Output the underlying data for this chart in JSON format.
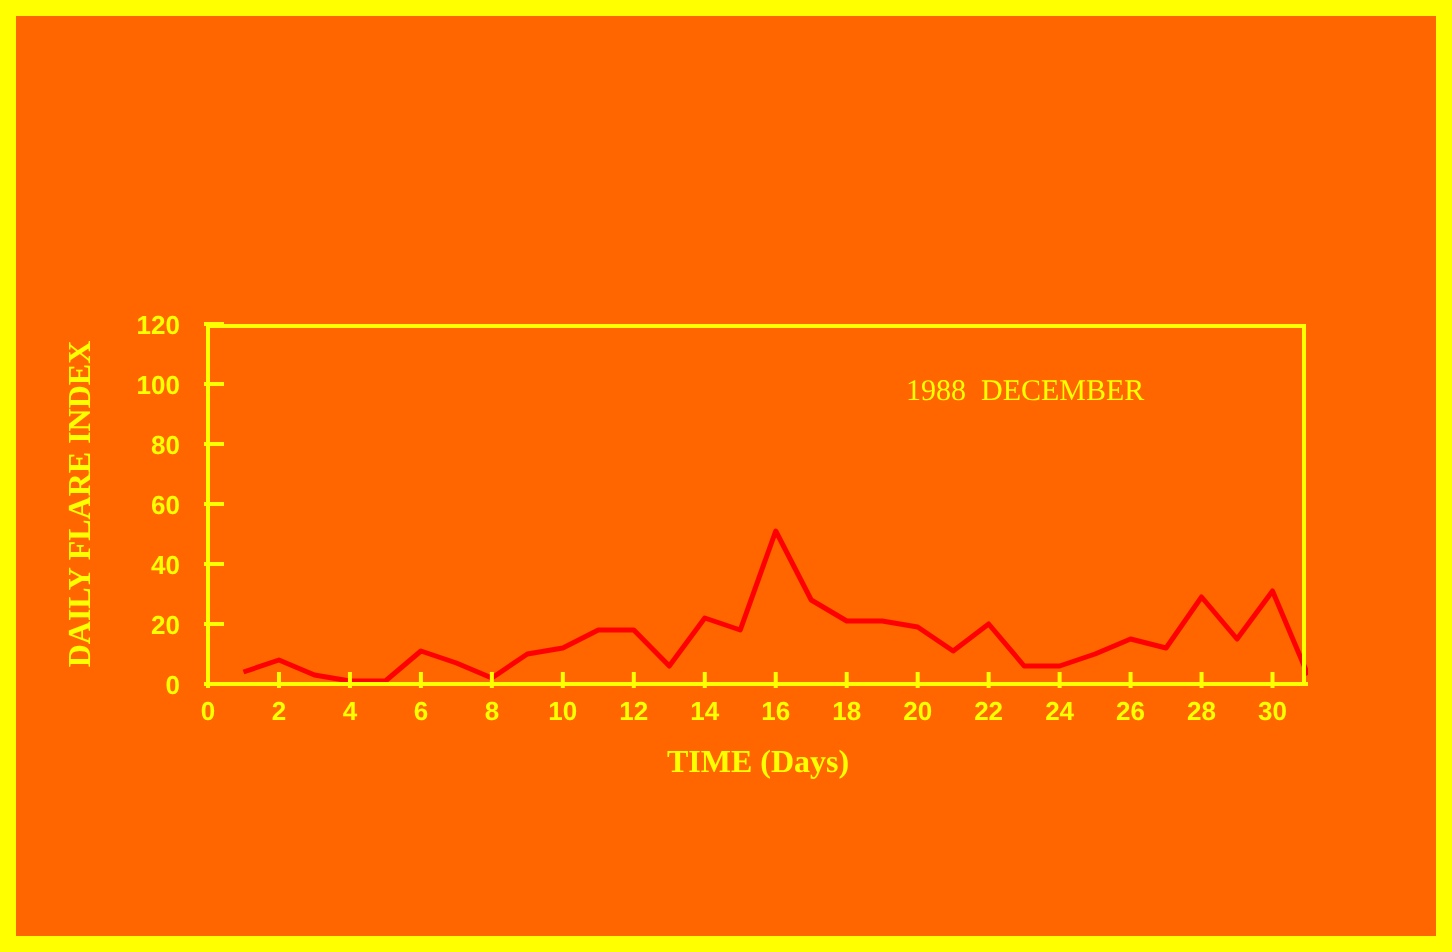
{
  "chart_data": {
    "type": "line",
    "xlabel": "TIME (Days)",
    "ylabel": "DAILY FLARE INDEX",
    "annotations": [
      "1988  DECEMBER"
    ],
    "x": [
      1,
      2,
      3,
      4,
      5,
      6,
      7,
      8,
      9,
      10,
      11,
      12,
      13,
      14,
      15,
      16,
      17,
      18,
      19,
      20,
      21,
      22,
      23,
      24,
      25,
      26,
      27,
      28,
      29,
      30,
      31
    ],
    "series": [
      {
        "color": "#ff0000",
        "values": [
          4,
          8,
          3,
          1,
          1,
          11,
          7,
          2,
          10,
          12,
          18,
          18,
          6,
          22,
          18,
          51,
          28,
          21,
          21,
          19,
          11,
          20,
          6,
          6,
          10,
          15,
          12,
          29,
          15,
          31,
          3
        ]
      }
    ],
    "xlim": [
      0,
      31
    ],
    "xticks": [
      0,
      2,
      4,
      6,
      8,
      10,
      12,
      14,
      16,
      18,
      20,
      22,
      24,
      26,
      28,
      30
    ],
    "ylim": [
      0,
      120
    ],
    "yticks": [
      0,
      20,
      40,
      60,
      80,
      100,
      120
    ],
    "grid": false,
    "legend": false,
    "marker": "none",
    "line_style": "solid"
  }
}
